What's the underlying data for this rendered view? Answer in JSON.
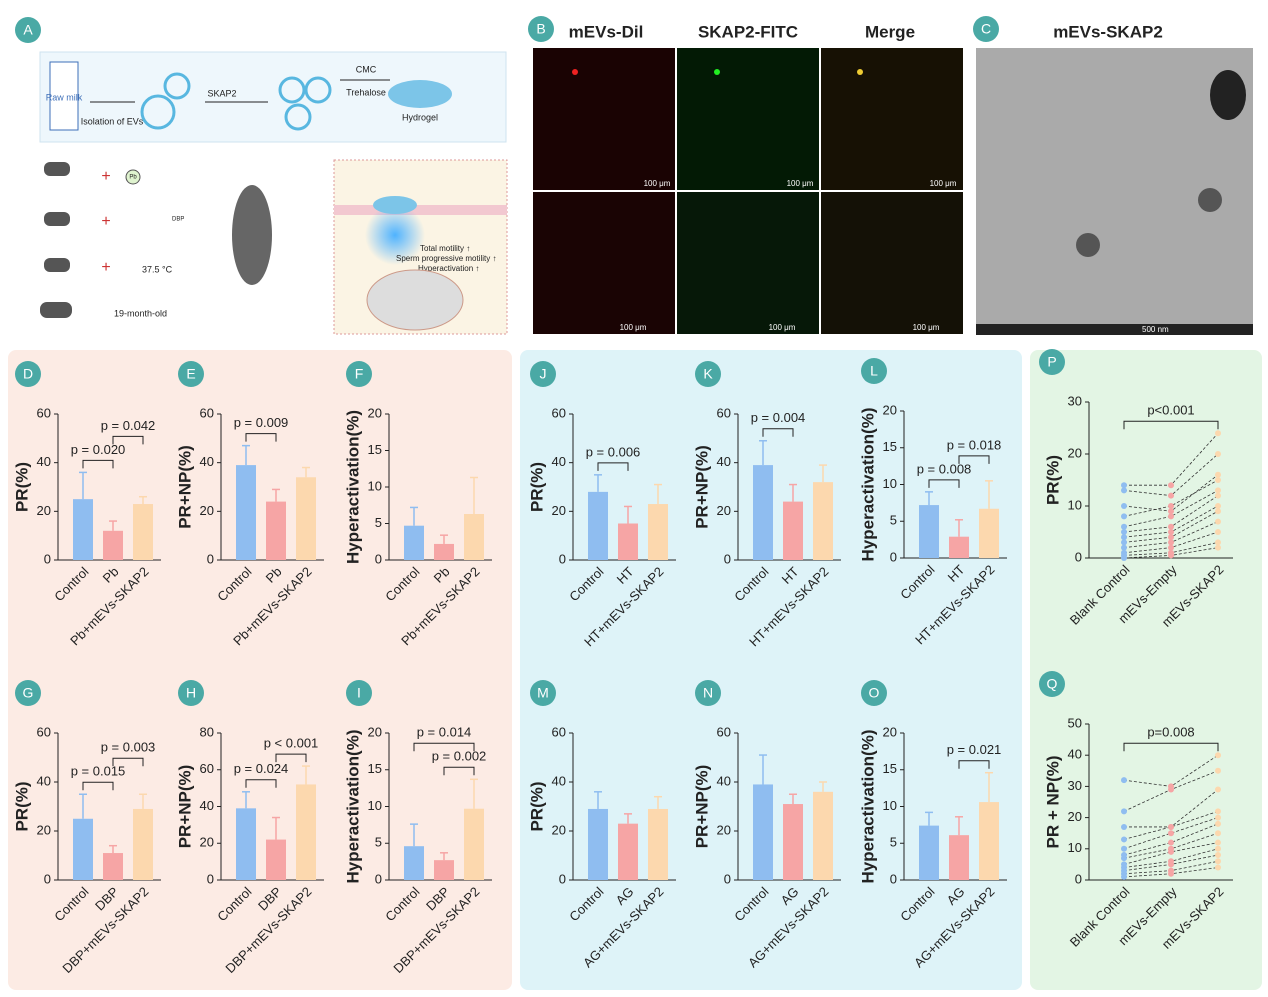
{
  "schematic": {
    "label": "A",
    "milk": "Raw milk",
    "isolation": "Isolation of EVs",
    "protein": "SKAP2",
    "cmc": "CMC",
    "trehalose": "Trehalose",
    "hydrogel": "Hydrogel",
    "pb": "Pb",
    "dbp": "DBP",
    "heat": "37.5 °C",
    "aged": "19-month-old",
    "effect1": "Total motility ↑",
    "effect2": "Sperm progressive motility ↑",
    "effect3": "Hyperactivation ↑"
  },
  "microscopy": {
    "label": "B",
    "columns": [
      "mEVs-Dil",
      "SKAP2-FITC",
      "Merge"
    ],
    "scale_bar": "100 μm"
  },
  "tem": {
    "label": "C",
    "title": "mEVs-SKAP2",
    "scale_bar": "500 nm"
  },
  "chart_data": [
    {
      "type": "bar",
      "label": "D",
      "ylabel": "PR(%)",
      "categories": [
        "Control",
        "Pb",
        "Pb+mEVs-SKAP2"
      ],
      "values": [
        25,
        12,
        23
      ],
      "errors": [
        11,
        4,
        3
      ],
      "colors": [
        "#8fbdf0",
        "#f6a5a5",
        "#fcd8ae"
      ],
      "ylim": [
        0,
        60
      ],
      "yticks": [
        0,
        20,
        40,
        60
      ],
      "significance": [
        {
          "pair": [
            0,
            1
          ],
          "label": "p = 0.020"
        },
        {
          "pair": [
            1,
            2
          ],
          "label": "p = 0.042"
        }
      ]
    },
    {
      "type": "bar",
      "label": "E",
      "ylabel": "PR+NP(%)",
      "categories": [
        "Control",
        "Pb",
        "Pb+mEVs-SKAP2"
      ],
      "values": [
        39,
        24,
        34
      ],
      "errors": [
        8,
        5,
        4
      ],
      "colors": [
        "#8fbdf0",
        "#f6a5a5",
        "#fcd8ae"
      ],
      "ylim": [
        0,
        60
      ],
      "yticks": [
        0,
        20,
        40,
        60
      ],
      "significance": [
        {
          "pair": [
            0,
            1
          ],
          "label": "p = 0.009"
        }
      ]
    },
    {
      "type": "bar",
      "label": "F",
      "ylabel": "Hyperactivation(%)",
      "categories": [
        "Control",
        "Pb",
        "Pb+mEVs-SKAP2"
      ],
      "values": [
        4.7,
        2.2,
        6.3
      ],
      "errors": [
        2.5,
        1.2,
        5
      ],
      "colors": [
        "#8fbdf0",
        "#f6a5a5",
        "#fcd8ae"
      ],
      "ylim": [
        0,
        20
      ],
      "yticks": [
        0,
        5,
        10,
        15,
        20
      ],
      "significance": []
    },
    {
      "type": "bar",
      "label": "J",
      "ylabel": "PR(%)",
      "categories": [
        "Control",
        "HT",
        "HT+mEVs-SKAP2"
      ],
      "values": [
        28,
        15,
        23
      ],
      "errors": [
        7,
        7,
        8
      ],
      "colors": [
        "#8fbdf0",
        "#f6a5a5",
        "#fcd8ae"
      ],
      "ylim": [
        0,
        60
      ],
      "yticks": [
        0,
        20,
        40,
        60
      ],
      "significance": [
        {
          "pair": [
            0,
            1
          ],
          "label": "p = 0.006"
        }
      ]
    },
    {
      "type": "bar",
      "label": "K",
      "ylabel": "PR+NP(%)",
      "categories": [
        "Control",
        "HT",
        "HT+mEVs-SKAP2"
      ],
      "values": [
        39,
        24,
        32
      ],
      "errors": [
        10,
        7,
        7
      ],
      "colors": [
        "#8fbdf0",
        "#f6a5a5",
        "#fcd8ae"
      ],
      "ylim": [
        0,
        60
      ],
      "yticks": [
        0,
        20,
        40,
        60
      ],
      "significance": [
        {
          "pair": [
            0,
            1
          ],
          "label": "p = 0.004"
        }
      ]
    },
    {
      "type": "bar",
      "label": "L",
      "ylabel": "Hyperactivation(%)",
      "categories": [
        "Control",
        "HT",
        "HT+mEVs-SKAP2"
      ],
      "values": [
        7.2,
        2.9,
        6.7
      ],
      "errors": [
        1.8,
        2.3,
        3.8
      ],
      "colors": [
        "#8fbdf0",
        "#f6a5a5",
        "#fcd8ae"
      ],
      "ylim": [
        0,
        20
      ],
      "yticks": [
        0,
        5,
        10,
        15,
        20
      ],
      "significance": [
        {
          "pair": [
            0,
            1
          ],
          "label": "p = 0.008"
        },
        {
          "pair": [
            1,
            2
          ],
          "label": "p = 0.018"
        }
      ]
    },
    {
      "type": "paired",
      "label": "P",
      "ylabel": "PR(%)",
      "categories": [
        "Blank Control",
        "mEVs-Empty",
        "mEVs-SKAP2"
      ],
      "colors": [
        "#8fbdf0",
        "#f6a5a5",
        "#fcd8ae"
      ],
      "ylim": [
        0,
        30
      ],
      "yticks": [
        0,
        10,
        20,
        30
      ],
      "significance": [
        {
          "pair": [
            0,
            2
          ],
          "label": "p<0.001"
        }
      ],
      "series": [
        {
          "values": [
            14,
            14,
            24
          ]
        },
        {
          "values": [
            13,
            12,
            20
          ]
        },
        {
          "values": [
            10,
            9,
            16
          ]
        },
        {
          "values": [
            8,
            10,
            15
          ]
        },
        {
          "values": [
            6,
            8,
            13
          ]
        },
        {
          "values": [
            5,
            6,
            12
          ]
        },
        {
          "values": [
            4,
            5,
            10
          ]
        },
        {
          "values": [
            3,
            4,
            9
          ]
        },
        {
          "values": [
            2,
            3,
            7
          ]
        },
        {
          "values": [
            1,
            2,
            5
          ]
        },
        {
          "values": [
            0.5,
            1,
            3
          ]
        },
        {
          "values": [
            0,
            0.5,
            2
          ]
        }
      ]
    },
    {
      "type": "bar",
      "label": "G",
      "ylabel": "PR(%)",
      "categories": [
        "Control",
        "DBP",
        "DBP+mEVs-SKAP2"
      ],
      "values": [
        25,
        11,
        29
      ],
      "errors": [
        10,
        3,
        6
      ],
      "colors": [
        "#8fbdf0",
        "#f6a5a5",
        "#fcd8ae"
      ],
      "ylim": [
        0,
        60
      ],
      "yticks": [
        0,
        20,
        40,
        60
      ],
      "significance": [
        {
          "pair": [
            0,
            1
          ],
          "label": "p = 0.015"
        },
        {
          "pair": [
            1,
            2
          ],
          "label": "p = 0.003"
        }
      ]
    },
    {
      "type": "bar",
      "label": "H",
      "ylabel": "PR+NP(%)",
      "categories": [
        "Control",
        "DBP",
        "DBP+mEVs-SKAP2"
      ],
      "values": [
        39,
        22,
        52
      ],
      "errors": [
        9,
        12,
        10
      ],
      "colors": [
        "#8fbdf0",
        "#f6a5a5",
        "#fcd8ae"
      ],
      "ylim": [
        0,
        80
      ],
      "yticks": [
        0,
        20,
        40,
        60,
        80
      ],
      "significance": [
        {
          "pair": [
            0,
            1
          ],
          "label": "p = 0.024"
        },
        {
          "pair": [
            1,
            2
          ],
          "label": "p < 0.001"
        }
      ]
    },
    {
      "type": "bar",
      "label": "I",
      "ylabel": "Hyperactivation(%)",
      "categories": [
        "Control",
        "DBP",
        "DBP+mEVs-SKAP2"
      ],
      "values": [
        4.6,
        2.7,
        9.7
      ],
      "errors": [
        3,
        1,
        4
      ],
      "colors": [
        "#8fbdf0",
        "#f6a5a5",
        "#fcd8ae"
      ],
      "ylim": [
        0,
        20
      ],
      "yticks": [
        0,
        5,
        10,
        15,
        20
      ],
      "significance": [
        {
          "pair": [
            1,
            2
          ],
          "label": "p = 0.002"
        },
        {
          "pair": [
            0,
            2
          ],
          "label": "p = 0.014"
        }
      ]
    },
    {
      "type": "bar",
      "label": "M",
      "ylabel": "PR(%)",
      "categories": [
        "Control",
        "AG",
        "AG+mEVs-SKAP2"
      ],
      "values": [
        29,
        23,
        29
      ],
      "errors": [
        7,
        4,
        5
      ],
      "colors": [
        "#8fbdf0",
        "#f6a5a5",
        "#fcd8ae"
      ],
      "ylim": [
        0,
        60
      ],
      "yticks": [
        0,
        20,
        40,
        60
      ],
      "significance": []
    },
    {
      "type": "bar",
      "label": "N",
      "ylabel": "PR+NP(%)",
      "categories": [
        "Control",
        "AG",
        "AG+mEVs-SKAP2"
      ],
      "values": [
        39,
        31,
        36
      ],
      "errors": [
        12,
        4,
        4
      ],
      "colors": [
        "#8fbdf0",
        "#f6a5a5",
        "#fcd8ae"
      ],
      "ylim": [
        0,
        60
      ],
      "yticks": [
        0,
        20,
        40,
        60
      ],
      "significance": []
    },
    {
      "type": "bar",
      "label": "O",
      "ylabel": "Hyperactivation(%)",
      "categories": [
        "Control",
        "AG",
        "AG+mEVs-SKAP2"
      ],
      "values": [
        7.4,
        6.1,
        10.6
      ],
      "errors": [
        1.8,
        2.5,
        4
      ],
      "colors": [
        "#8fbdf0",
        "#f6a5a5",
        "#fcd8ae"
      ],
      "ylim": [
        0,
        20
      ],
      "yticks": [
        0,
        5,
        10,
        15,
        20
      ],
      "significance": [
        {
          "pair": [
            1,
            2
          ],
          "label": "p = 0.021"
        }
      ]
    },
    {
      "type": "paired",
      "label": "Q",
      "ylabel": "PR + NP(%)",
      "categories": [
        "Blank Control",
        "mEVs-Empty",
        "mEVs-SKAP2"
      ],
      "colors": [
        "#8fbdf0",
        "#f6a5a5",
        "#fcd8ae"
      ],
      "ylim": [
        0,
        50
      ],
      "yticks": [
        0,
        10,
        20,
        30,
        40,
        50
      ],
      "significance": [
        {
          "pair": [
            0,
            2
          ],
          "label": "p=0.008"
        }
      ],
      "series": [
        {
          "values": [
            32,
            30,
            40
          ]
        },
        {
          "values": [
            22,
            29,
            35
          ]
        },
        {
          "values": [
            17,
            17,
            29
          ]
        },
        {
          "values": [
            13,
            17,
            22
          ]
        },
        {
          "values": [
            10,
            15,
            20
          ]
        },
        {
          "values": [
            8,
            12,
            18
          ]
        },
        {
          "values": [
            7,
            10,
            15
          ]
        },
        {
          "values": [
            5,
            9,
            12
          ]
        },
        {
          "values": [
            4,
            6,
            10
          ]
        },
        {
          "values": [
            3,
            5,
            8
          ]
        },
        {
          "values": [
            2,
            3,
            6
          ]
        },
        {
          "values": [
            1,
            2,
            4
          ]
        }
      ]
    }
  ]
}
